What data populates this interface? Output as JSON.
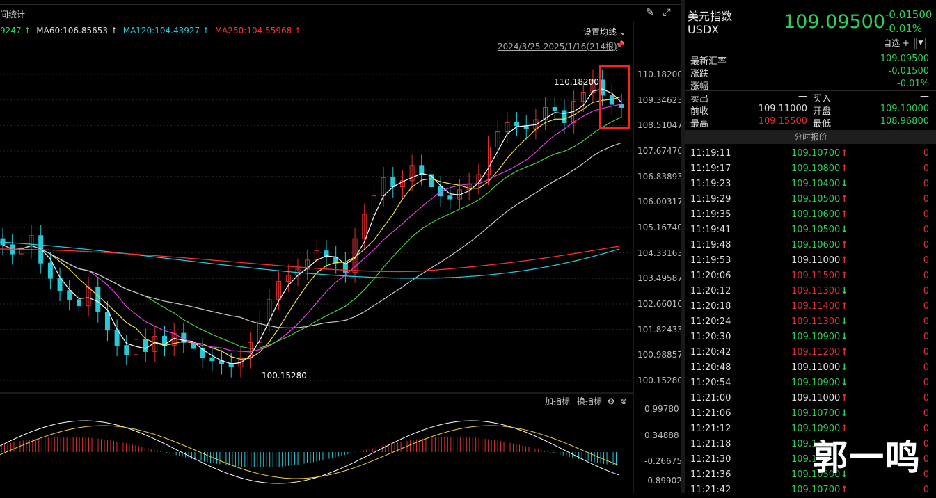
{
  "chart_panel": {
    "title": "间统计",
    "ma_legend": [
      {
        "label": "9247 ↑",
        "color": "#2fcf5a"
      },
      {
        "label": "MA60:106.85653 ↑",
        "color": "#dddddd"
      },
      {
        "label": "MA120:104.43927 ↑",
        "color": "#27c8d8"
      },
      {
        "label": "MA250:104.55968 ↑",
        "color": "#ff3030"
      }
    ],
    "set_ma_label": "设置均线",
    "range_label": "2024/3/25-2025/1/16(214根)",
    "price_axis": [
      "110.18200",
      "109.34623",
      "108.51047",
      "107.67470",
      "106.83893",
      "106.00317",
      "105.16740",
      "104.33163",
      "103.49587",
      "102.66010",
      "101.82433",
      "100.98857",
      "100.15280"
    ],
    "high_annot": "110.18200",
    "low_annot": "100.15280",
    "indicator_controls": {
      "add": "加指标",
      "switch": "换指标"
    },
    "sub_axis": [
      "0.99780",
      "0.34888",
      "-0.26675",
      "-0.89902"
    ]
  },
  "chart_data": {
    "type": "candlestick",
    "ylim": [
      100.1528,
      110.182
    ],
    "recent_closes": [
      104.6,
      104.3,
      104.5,
      104.9,
      104.0,
      103.5,
      103.1,
      102.8,
      102.6,
      103.2,
      102.4,
      101.8,
      101.3,
      101.0,
      101.5,
      101.1,
      101.6,
      101.3,
      101.7,
      101.4,
      101.2,
      100.9,
      100.8,
      100.7,
      100.6,
      100.9,
      101.4,
      102.1,
      102.8,
      103.4,
      103.6,
      103.8,
      104.1,
      104.4,
      104.2,
      104.0,
      103.7,
      104.8,
      105.6,
      106.2,
      106.8,
      106.5,
      106.7,
      107.2,
      106.9,
      106.5,
      106.2,
      106.1,
      106.4,
      106.6,
      106.9,
      107.8,
      108.3,
      108.6,
      108.5,
      108.4,
      108.7,
      109.1,
      109.0,
      108.6,
      109.3,
      109.6,
      110.0,
      109.5,
      109.2,
      109.1
    ]
  },
  "quote": {
    "name": "美元指数",
    "code": "USDX",
    "price": "109.09500",
    "change": "-0.01500",
    "change_pct": "-0.01%",
    "watchlist_btn": "自选 +",
    "info": {
      "latest_label": "最新汇率",
      "latest": "109.09500",
      "chg_label": "涨跌",
      "chg": "-0.01500",
      "pct_label": "涨幅",
      "pct": "-0.01%",
      "sell_label": "卖出",
      "sell": "—",
      "buy_label": "买入",
      "buy": "—",
      "prev_label": "前收",
      "prev": "109.11000",
      "open_label": "开盘",
      "open": "109.10000",
      "high_label": "最高",
      "high": "109.15500",
      "low_label": "最低",
      "low": "108.96800"
    },
    "ticks_header": "分时报价",
    "ticks": [
      {
        "time": "11:19:11",
        "price": "109.10700",
        "dir": "up",
        "color": "g",
        "vol": "0"
      },
      {
        "time": "11:19:17",
        "price": "109.10800",
        "dir": "up",
        "color": "g",
        "vol": "0"
      },
      {
        "time": "11:19:23",
        "price": "109.10400",
        "dir": "down",
        "color": "g",
        "vol": "0"
      },
      {
        "time": "11:19:29",
        "price": "109.10500",
        "dir": "up",
        "color": "g",
        "vol": "0"
      },
      {
        "time": "11:19:35",
        "price": "109.10600",
        "dir": "up",
        "color": "g",
        "vol": "0"
      },
      {
        "time": "11:19:41",
        "price": "109.10500",
        "dir": "down",
        "color": "g",
        "vol": "0"
      },
      {
        "time": "11:19:48",
        "price": "109.10600",
        "dir": "up",
        "color": "g",
        "vol": "0"
      },
      {
        "time": "11:19:53",
        "price": "109.11000",
        "dir": "up",
        "color": "w",
        "vol": "0"
      },
      {
        "time": "11:20:06",
        "price": "109.11500",
        "dir": "up",
        "color": "r",
        "vol": "0"
      },
      {
        "time": "11:20:12",
        "price": "109.11300",
        "dir": "down",
        "color": "r",
        "vol": "0"
      },
      {
        "time": "11:20:18",
        "price": "109.11400",
        "dir": "up",
        "color": "r",
        "vol": "0"
      },
      {
        "time": "11:20:24",
        "price": "109.11300",
        "dir": "down",
        "color": "r",
        "vol": "0"
      },
      {
        "time": "11:20:30",
        "price": "109.10900",
        "dir": "down",
        "color": "g",
        "vol": "0"
      },
      {
        "time": "11:20:42",
        "price": "109.11200",
        "dir": "up",
        "color": "r",
        "vol": "0"
      },
      {
        "time": "11:20:48",
        "price": "109.11000",
        "dir": "down",
        "color": "w",
        "vol": "0"
      },
      {
        "time": "11:20:54",
        "price": "109.10900",
        "dir": "down",
        "color": "g",
        "vol": "0"
      },
      {
        "time": "11:21:00",
        "price": "109.11000",
        "dir": "up",
        "color": "w",
        "vol": "0"
      },
      {
        "time": "11:21:06",
        "price": "109.10700",
        "dir": "down",
        "color": "g",
        "vol": "0"
      },
      {
        "time": "11:21:12",
        "price": "109.10900",
        "dir": "up",
        "color": "g",
        "vol": "0"
      },
      {
        "time": "11:21:18",
        "price": "109.1",
        "dir": "",
        "color": "g",
        "vol": "0"
      },
      {
        "time": "11:21:30",
        "price": "109.1",
        "dir": "",
        "color": "g",
        "vol": "0"
      },
      {
        "time": "11:21:36",
        "price": "109.10500",
        "dir": "down",
        "color": "g",
        "vol": "0"
      },
      {
        "time": "11:21:42",
        "price": "109.10700",
        "dir": "up",
        "color": "g",
        "vol": "0"
      }
    ]
  },
  "watermark": "郭一鸣",
  "colors": {
    "up": "#e03030",
    "down": "#27c8d8",
    "green": "#2fcf5a",
    "highlight": "#ff2020"
  }
}
